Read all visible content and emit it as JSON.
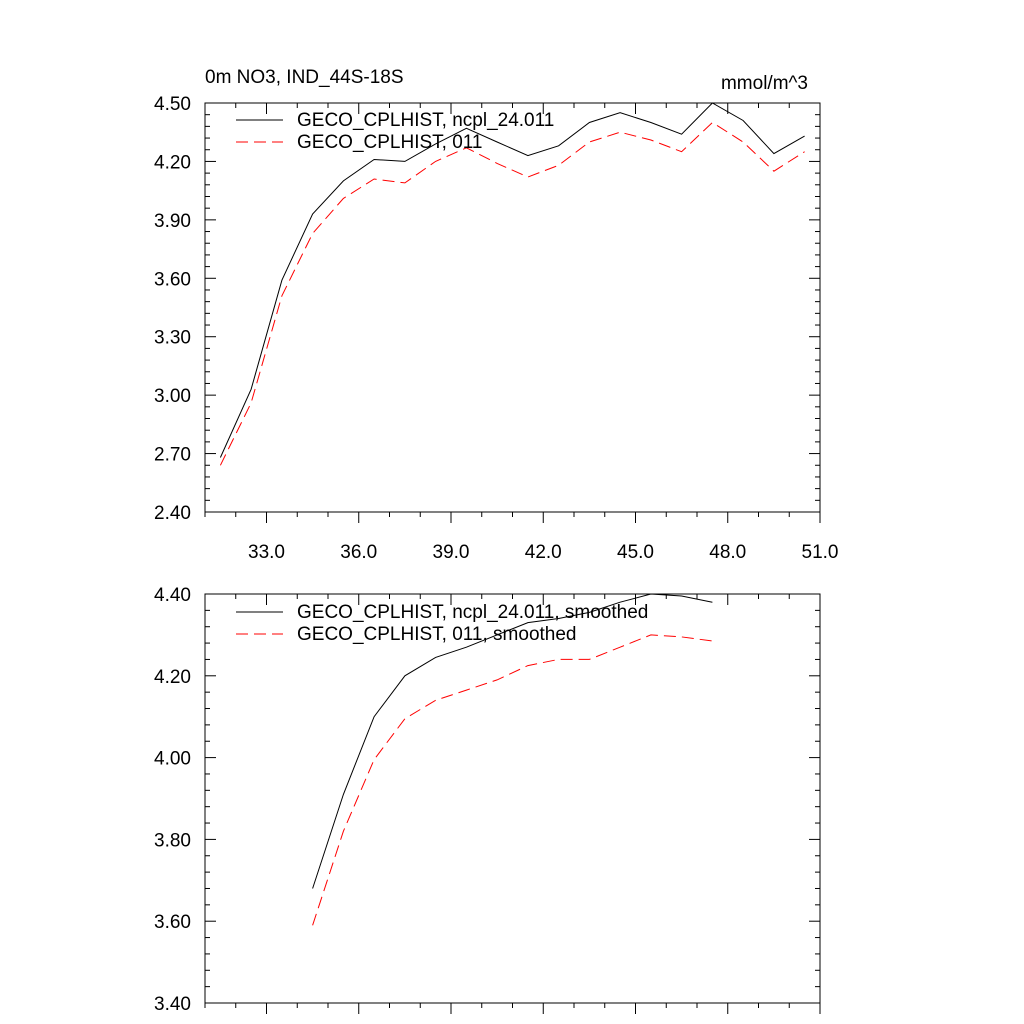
{
  "chart_data": [
    {
      "type": "line",
      "title": "0m NO3, IND_44S-18S",
      "units_label": "mmol/m^3",
      "xlabel": "",
      "ylabel": "",
      "xlim": [
        31,
        51
      ],
      "ylim": [
        2.4,
        4.5
      ],
      "x_ticks": [
        33,
        36,
        39,
        42,
        45,
        48,
        51
      ],
      "x_tick_labels": [
        "33.0",
        "36.0",
        "39.0",
        "42.0",
        "45.0",
        "48.0",
        "51.0"
      ],
      "y_ticks": [
        2.4,
        2.7,
        3.0,
        3.3,
        3.6,
        3.9,
        4.2,
        4.5
      ],
      "y_tick_labels": [
        "2.40",
        "2.70",
        "3.00",
        "3.30",
        "3.60",
        "3.90",
        "4.20",
        "4.50"
      ],
      "grid": false,
      "legend_position": "top-left",
      "x": [
        31.5,
        32.5,
        33.5,
        34.5,
        35.5,
        36.5,
        37.5,
        38.5,
        39.5,
        40.5,
        41.5,
        42.5,
        43.5,
        44.5,
        45.5,
        46.5,
        47.5,
        48.5,
        49.5,
        50.5
      ],
      "series": [
        {
          "name": "GECO_CPLHIST, ncpl_24.011",
          "color": "#000000",
          "dash": "solid",
          "values": [
            2.68,
            3.03,
            3.59,
            3.93,
            4.1,
            4.21,
            4.2,
            4.29,
            4.37,
            4.3,
            4.23,
            4.28,
            4.4,
            4.45,
            4.4,
            4.34,
            4.5,
            4.41,
            4.24,
            4.33
          ]
        },
        {
          "name": "GECO_CPLHIST, 011",
          "color": "#ff0000",
          "dash": "dashed",
          "values": [
            2.64,
            2.96,
            3.51,
            3.83,
            4.01,
            4.11,
            4.09,
            4.2,
            4.27,
            4.19,
            4.12,
            4.18,
            4.3,
            4.35,
            4.31,
            4.25,
            4.4,
            4.3,
            4.15,
            4.25
          ]
        }
      ]
    },
    {
      "type": "line",
      "title": "",
      "xlabel": "",
      "ylabel": "",
      "xlim": [
        31,
        51
      ],
      "ylim": [
        3.4,
        4.4
      ],
      "x_ticks": [
        33,
        36,
        39,
        42,
        45,
        48,
        51
      ],
      "x_tick_labels": [],
      "y_ticks": [
        3.4,
        3.6,
        3.8,
        4.0,
        4.2,
        4.4
      ],
      "y_tick_labels": [
        "3.40",
        "3.60",
        "3.80",
        "4.00",
        "4.20",
        "4.40"
      ],
      "grid": false,
      "legend_position": "top-left",
      "x": [
        34.5,
        35.5,
        36.5,
        37.5,
        38.5,
        39.5,
        40.5,
        41.5,
        42.5,
        43.5,
        44.5,
        45.5,
        46.5,
        47.5
      ],
      "series": [
        {
          "name": "GECO_CPLHIST, ncpl_24.011, smoothed",
          "color": "#000000",
          "dash": "solid",
          "values": [
            3.68,
            3.91,
            4.1,
            4.2,
            4.245,
            4.27,
            4.3,
            4.33,
            4.34,
            4.355,
            4.38,
            4.4,
            4.395,
            4.38
          ]
        },
        {
          "name": "GECO_CPLHIST, 011, smoothed",
          "color": "#ff0000",
          "dash": "dashed",
          "values": [
            3.59,
            3.82,
            3.995,
            4.095,
            4.14,
            4.165,
            4.19,
            4.225,
            4.24,
            4.24,
            4.27,
            4.3,
            4.295,
            4.285
          ]
        }
      ]
    }
  ]
}
